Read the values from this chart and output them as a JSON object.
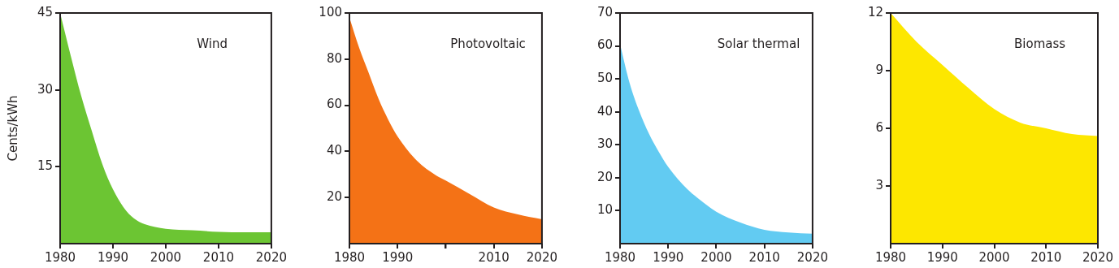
{
  "chart_data": [
    {
      "type": "area",
      "title": "Wind",
      "ylabel": "Cents/kWh",
      "x": [
        1980,
        1982,
        1984,
        1986,
        1988,
        1990,
        1992,
        1994,
        1996,
        2000,
        2005,
        2010,
        2015,
        2020
      ],
      "series": [
        {
          "color": "#6cc533",
          "values": [
            45,
            36.7,
            28.8,
            22,
            15.5,
            10.6,
            7.1,
            4.9,
            3.8,
            2.9,
            2.6,
            2.3,
            2.2,
            2.2
          ]
        }
      ],
      "xlim": [
        1980,
        2020
      ],
      "xticks": [
        1980,
        1990,
        2000,
        2010,
        2020
      ],
      "ylim": [
        0,
        45
      ],
      "yticks": [
        15,
        30,
        45
      ]
    },
    {
      "type": "area",
      "title": "Photovoltaic",
      "x": [
        1980,
        1982,
        1984,
        1986,
        1988,
        1990,
        1994,
        1998,
        2000,
        2005,
        2010,
        2015,
        2020
      ],
      "series": [
        {
          "color": "#f47216",
          "values": [
            98,
            85,
            74,
            63,
            54,
            46.5,
            36,
            29.6,
            27.4,
            21.5,
            15.7,
            12.7,
            10.6
          ]
        }
      ],
      "xlim": [
        1980,
        2020
      ],
      "xticks": [
        1980,
        1990,
        {
          "value": 2000,
          "label": null
        },
        2010,
        2020
      ],
      "ylim": [
        0,
        100
      ],
      "yticks": [
        20,
        40,
        60,
        80,
        100
      ]
    },
    {
      "type": "area",
      "title": "Solar thermal",
      "x": [
        1980,
        1982,
        1984,
        1986,
        1988,
        1990,
        1994,
        1996,
        2000,
        2005,
        2010,
        2015,
        2020
      ],
      "series": [
        {
          "color": "#62cbf2",
          "values": [
            60.5,
            48.7,
            40.2,
            33.4,
            28,
            23.3,
            16.5,
            14,
            9.7,
            6.4,
            4.2,
            3.4,
            3
          ]
        }
      ],
      "xlim": [
        1980,
        2020
      ],
      "xticks": [
        1980,
        1990,
        2000,
        2010,
        2020
      ],
      "ylim": [
        0,
        70
      ],
      "yticks": [
        10,
        20,
        30,
        40,
        50,
        60,
        70
      ]
    },
    {
      "type": "area",
      "title": "Biomass",
      "x": [
        1980,
        1985,
        1990,
        1995,
        2000,
        2005,
        2010,
        2015,
        2020
      ],
      "series": [
        {
          "color": "#fde700",
          "values": [
            12,
            10.5,
            9.3,
            8.1,
            7,
            6.3,
            6,
            5.7,
            5.6
          ]
        }
      ],
      "xlim": [
        1980,
        2020
      ],
      "xticks": [
        1980,
        1990,
        2000,
        2010,
        2020
      ],
      "ylim": [
        0,
        12
      ],
      "yticks": [
        3,
        6,
        9,
        12
      ]
    }
  ]
}
